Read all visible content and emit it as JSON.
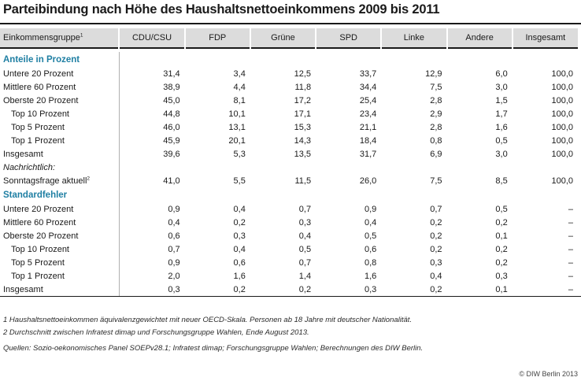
{
  "title": "Parteibindung nach Höhe des Haushaltsnettoeinkommens 2009 bis 2011",
  "header": {
    "first_col": "Einkommensgruppe",
    "first_col_sup": "1",
    "columns": [
      "CDU/CSU",
      "FDP",
      "Grüne",
      "SPD",
      "Linke",
      "Andere",
      "Insgesamt"
    ]
  },
  "section1": {
    "label": "Anteile in Prozent",
    "rows": [
      {
        "label": "Untere 20 Prozent",
        "values": [
          "31,4",
          "3,4",
          "12,5",
          "33,7",
          "12,9",
          "6,0",
          "100,0"
        ]
      },
      {
        "label": "Mittlere 60 Prozent",
        "values": [
          "38,9",
          "4,4",
          "11,8",
          "34,4",
          "7,5",
          "3,0",
          "100,0"
        ]
      },
      {
        "label": "Oberste 20 Prozent",
        "values": [
          "45,0",
          "8,1",
          "17,2",
          "25,4",
          "2,8",
          "1,5",
          "100,0"
        ]
      },
      {
        "label": "Top 10 Prozent",
        "values": [
          "44,8",
          "10,1",
          "17,1",
          "23,4",
          "2,9",
          "1,7",
          "100,0"
        ]
      },
      {
        "label": "Top 5 Prozent",
        "values": [
          "46,0",
          "13,1",
          "15,3",
          "21,1",
          "2,8",
          "1,6",
          "100,0"
        ]
      },
      {
        "label": "Top 1 Prozent",
        "values": [
          "45,9",
          "20,1",
          "14,3",
          "18,4",
          "0,8",
          "0,5",
          "100,0"
        ]
      },
      {
        "label": "Insgesamt",
        "values": [
          "39,6",
          "5,3",
          "13,5",
          "31,7",
          "6,9",
          "3,0",
          "100,0"
        ]
      }
    ],
    "nachrichtlich": "Nachrichtlich:",
    "sonntag": {
      "label": "Sonntagsfrage aktuell",
      "sup": "2",
      "values": [
        "41,0",
        "5,5",
        "11,5",
        "26,0",
        "7,5",
        "8,5",
        "100,0"
      ]
    }
  },
  "section2": {
    "label": "Standardfehler",
    "rows": [
      {
        "label": "Untere 20 Prozent",
        "values": [
          "0,9",
          "0,4",
          "0,7",
          "0,9",
          "0,7",
          "0,5",
          "–"
        ]
      },
      {
        "label": "Mittlere 60 Prozent",
        "values": [
          "0,4",
          "0,2",
          "0,3",
          "0,4",
          "0,2",
          "0,2",
          "–"
        ]
      },
      {
        "label": "Oberste 20 Prozent",
        "values": [
          "0,6",
          "0,3",
          "0,4",
          "0,5",
          "0,2",
          "0,1",
          "–"
        ]
      },
      {
        "label": "Top 10 Prozent",
        "values": [
          "0,7",
          "0,4",
          "0,5",
          "0,6",
          "0,2",
          "0,2",
          "–"
        ]
      },
      {
        "label": "Top 5 Prozent",
        "values": [
          "0,9",
          "0,6",
          "0,7",
          "0,8",
          "0,3",
          "0,2",
          "–"
        ]
      },
      {
        "label": "Top 1 Prozent",
        "values": [
          "2,0",
          "1,6",
          "1,4",
          "1,6",
          "0,4",
          "0,3",
          "–"
        ]
      },
      {
        "label": "Insgesamt",
        "values": [
          "0,3",
          "0,2",
          "0,2",
          "0,3",
          "0,2",
          "0,1",
          "–"
        ]
      }
    ]
  },
  "notes": {
    "n1": "1  Haushaltsnettoeinkommen äquivalenzgewichtet mit neuer OECD-Skala. Personen ab 18 Jahre mit deutscher Nationalität.",
    "n2": "2  Durchschnitt zwischen Infratest dimap und Forschungsgruppe Wahlen, Ende August 2013.",
    "sources": "Quellen: Sozio-oekonomisches Panel SOEPv28.1; Infratest dimap; Forschungsgruppe Wahlen; Berechnungen des DIW Berlin."
  },
  "copyright": "© DIW Berlin 2013",
  "colors": {
    "section_heading": "#1f7fa3",
    "header_bg": "#dcdcdc"
  }
}
